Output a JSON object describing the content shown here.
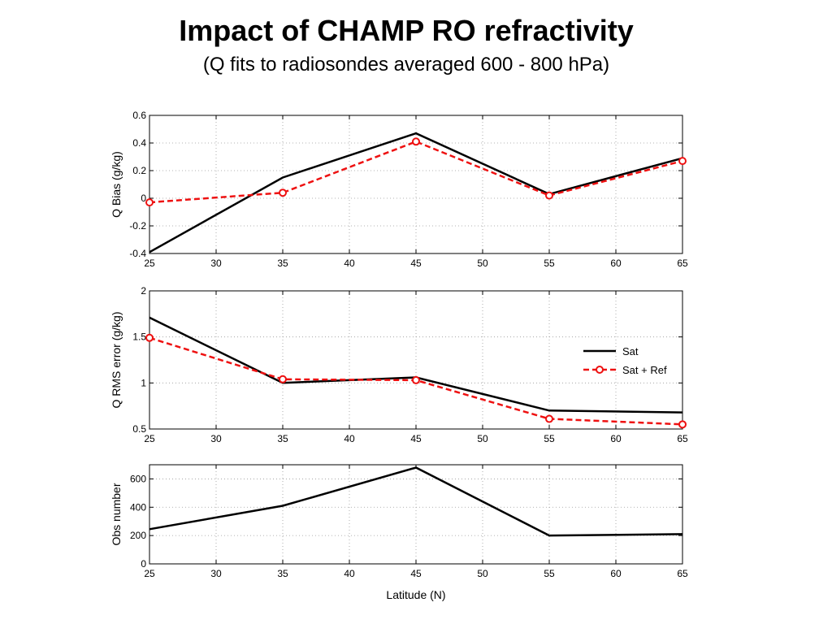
{
  "title": "Impact of CHAMP RO refractivity",
  "subtitle": "(Q fits to radiosondes averaged 600 - 800 hPa)",
  "colors": {
    "sat": "#000000",
    "sat_ref": "#ee1111",
    "grid": "#9a9a9a",
    "axis": "#000000"
  },
  "legend": {
    "location": "right, middle panel",
    "entries": [
      "Sat",
      "Sat + Ref"
    ]
  },
  "chart_data": [
    {
      "type": "line",
      "ylabel": "Q Bias (g/kg)",
      "xlim": [
        25,
        65
      ],
      "ylim": [
        -0.4,
        0.6
      ],
      "x_ticks": [
        "25",
        "30",
        "35",
        "40",
        "45",
        "50",
        "55",
        "60",
        "65"
      ],
      "y_ticks": [
        "-0.4",
        "-0.2",
        "0",
        "0.2",
        "0.4",
        "0.6"
      ],
      "grid": true,
      "x": [
        25,
        35,
        45,
        55,
        65
      ],
      "series": [
        {
          "name": "Sat",
          "values": [
            -0.39,
            0.15,
            0.47,
            0.03,
            0.29
          ],
          "style": "solid"
        },
        {
          "name": "Sat + Ref",
          "values": [
            -0.03,
            0.04,
            0.41,
            0.02,
            0.27
          ],
          "style": "dashed-circle"
        }
      ]
    },
    {
      "type": "line",
      "ylabel": "Q RMS error (g/kg)",
      "xlim": [
        25,
        65
      ],
      "ylim": [
        0.5,
        2
      ],
      "x_ticks": [
        "25",
        "30",
        "35",
        "40",
        "45",
        "50",
        "55",
        "60",
        "65"
      ],
      "y_ticks": [
        "0.5",
        "1",
        "1.5",
        "2"
      ],
      "grid": true,
      "x": [
        25,
        35,
        45,
        55,
        65
      ],
      "series": [
        {
          "name": "Sat",
          "values": [
            1.71,
            1.0,
            1.06,
            0.7,
            0.68
          ],
          "style": "solid"
        },
        {
          "name": "Sat + Ref",
          "values": [
            1.49,
            1.04,
            1.03,
            0.61,
            0.55
          ],
          "style": "dashed-circle"
        }
      ]
    },
    {
      "type": "line",
      "ylabel": "Obs number",
      "xlabel": "Latitude (N)",
      "xlim": [
        25,
        65
      ],
      "ylim": [
        0,
        700
      ],
      "x_ticks": [
        "25",
        "30",
        "35",
        "40",
        "45",
        "50",
        "55",
        "60",
        "65"
      ],
      "y_ticks": [
        "0",
        "200",
        "400",
        "600"
      ],
      "grid": true,
      "x": [
        25,
        35,
        45,
        55,
        65
      ],
      "series": [
        {
          "values": [
            245,
            410,
            680,
            200,
            210
          ],
          "style": "solid"
        }
      ]
    }
  ]
}
